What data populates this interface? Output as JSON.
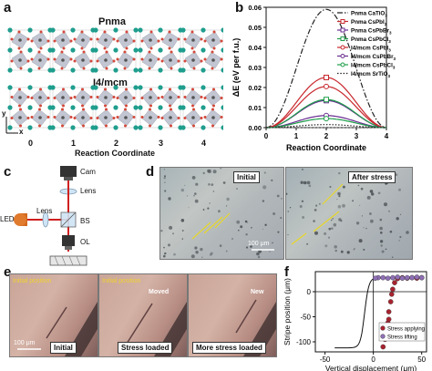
{
  "panels": {
    "a": {
      "label": "a",
      "pnma_title": "Pnma",
      "i4_title": "I4/mcm",
      "x_ticks": [
        "0",
        "1",
        "2",
        "3",
        "4"
      ],
      "xlabel": "Reaction Coordinate",
      "axis_y": "y",
      "axis_x": "x"
    },
    "b": {
      "label": "b"
    },
    "c": {
      "label": "c",
      "cam": "Cam",
      "lens_top": "Lens",
      "lens_left": "Lens",
      "led": "LED",
      "bs": "BS",
      "ol": "OL"
    },
    "d": {
      "label": "d",
      "initial": "Initial",
      "after": "After stress",
      "scale": "100 μm"
    },
    "e": {
      "label": "e",
      "initial_position_1": "Initial position",
      "initial_position_2": "Initial position",
      "moved": "Moved",
      "new": "New",
      "scale": "100 μm",
      "tag_initial": "Initial",
      "tag_stress": "Stress loaded",
      "tag_more": "More stress loaded"
    },
    "f": {
      "label": "f"
    }
  },
  "chart_data": [
    {
      "id": "b",
      "type": "line",
      "xlabel": "Reaction Coordinate",
      "ylabel": "ΔE (eV per f.u.)",
      "xlim": [
        0,
        4
      ],
      "ylim": [
        0,
        0.06
      ],
      "x_ticks": [
        0,
        1,
        2,
        3,
        4
      ],
      "y_ticks": [
        0.0,
        0.01,
        0.02,
        0.03,
        0.04,
        0.05,
        0.06
      ],
      "y_tick_labels": [
        "0.00",
        "0.01",
        "0.02",
        "0.03",
        "0.04",
        "0.05",
        "0.06"
      ],
      "legend_position": "top-right",
      "series": [
        {
          "name": "Pnma CaTiO3",
          "label_main": "Pnma CaTiO",
          "sub": "3",
          "color": "#222222",
          "style": "dashdot",
          "marker": "none",
          "peak": 0.059
        },
        {
          "name": "Pnma CsPbI3",
          "label_main": "Pnma CsPbI",
          "sub": "3",
          "color": "#c8282e",
          "style": "solid",
          "marker": "square",
          "peak": 0.025
        },
        {
          "name": "Pnma CsPbBr3",
          "label_main": "Pnma CsPbBr",
          "sub": "3",
          "color": "#6a2d91",
          "style": "solid",
          "marker": "square",
          "peak": 0.0135
        },
        {
          "name": "Pnma CsPbCl3",
          "label_main": "Pnma CsPbCl",
          "sub": "3",
          "color": "#1f9e4b",
          "style": "solid",
          "marker": "square",
          "peak": 0.014
        },
        {
          "name": "I4/mcm CsPbI3",
          "label_main": "I4/mcm CsPbI",
          "sub": "3",
          "color": "#c8282e",
          "style": "solid",
          "marker": "circle",
          "peak": 0.0205
        },
        {
          "name": "I4/mcm CsPbBr3",
          "label_main": "I4/mcm CsPbBr",
          "sub": "3",
          "color": "#6a2d91",
          "style": "solid",
          "marker": "circle",
          "peak": 0.006
        },
        {
          "name": "I4/mcm CsPbCl3",
          "label_main": "I4/mcm CsPbCl",
          "sub": "3",
          "color": "#1f9e4b",
          "style": "solid",
          "marker": "circle",
          "peak": 0.0045
        },
        {
          "name": "I4/mcm SrTiO3",
          "label_main": "I4/mcm SrTiO",
          "sub": "3",
          "color": "#222222",
          "style": "dotted",
          "marker": "none",
          "peak": 0.0015
        }
      ]
    },
    {
      "id": "f",
      "type": "scatter",
      "xlabel": "Vertical displacement (μm)",
      "ylabel": "Stripe position (μm)",
      "xlim": [
        -60,
        55
      ],
      "ylim": [
        -120,
        40
      ],
      "x_ticks": [
        -50,
        0,
        50
      ],
      "y_ticks": [
        0,
        -50,
        -100
      ],
      "legend_position": "bottom-right",
      "series": [
        {
          "name": "Stress applying",
          "color": "#a8232f",
          "points": [
            [
              10,
              -110
            ],
            [
              12,
              -95
            ],
            [
              14,
              -80
            ],
            [
              15,
              -62
            ],
            [
              16,
              -55
            ],
            [
              16,
              -40
            ],
            [
              18,
              -20
            ],
            [
              19,
              -5
            ],
            [
              20,
              5
            ],
            [
              22,
              18
            ],
            [
              25,
              26
            ],
            [
              30,
              28
            ],
            [
              35,
              27
            ],
            [
              40,
              28
            ],
            [
              45,
              27
            ],
            [
              50,
              28
            ]
          ]
        },
        {
          "name": "Stress lifting",
          "color": "#8e6fb5",
          "points": [
            [
              50,
              28
            ],
            [
              45,
              29
            ],
            [
              40,
              28
            ],
            [
              35,
              28
            ],
            [
              30,
              27
            ],
            [
              25,
              29
            ],
            [
              20,
              28
            ],
            [
              15,
              27
            ],
            [
              10,
              28
            ],
            [
              5,
              28
            ],
            [
              2,
              27
            ]
          ]
        }
      ],
      "fit_curve": {
        "color": "#111111",
        "center": -9,
        "width": 2.2,
        "low": -112,
        "high": 28
      }
    }
  ]
}
